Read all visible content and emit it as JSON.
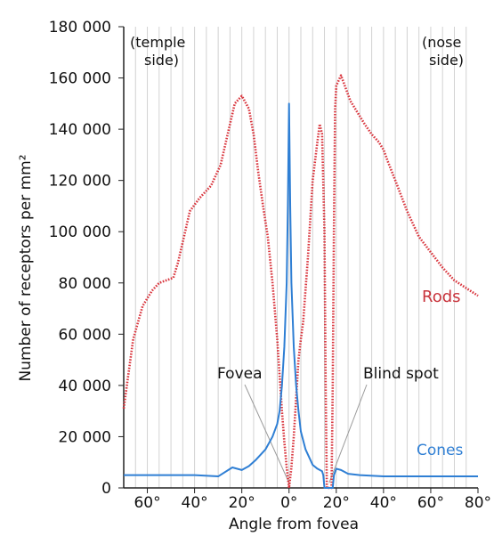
{
  "chart_data": {
    "type": "line",
    "title": "",
    "xlabel": "Angle from fovea",
    "ylabel": "Number of receptors per mm²",
    "xlim": [
      -70,
      80
    ],
    "ylim": [
      0,
      180000
    ],
    "grid": "vertical",
    "y_ticks": [
      {
        "value": 0,
        "label": "0"
      },
      {
        "value": 20000,
        "label": "20 000"
      },
      {
        "value": 40000,
        "label": "40 000"
      },
      {
        "value": 60000,
        "label": "60 000"
      },
      {
        "value": 80000,
        "label": "80 000"
      },
      {
        "value": 100000,
        "label": "100 000"
      },
      {
        "value": 120000,
        "label": "120 000"
      },
      {
        "value": 140000,
        "label": "140 000"
      },
      {
        "value": 160000,
        "label": "160 000"
      },
      {
        "value": 180000,
        "label": "180 000"
      }
    ],
    "x_ticks": [
      {
        "value": -60,
        "label": "60°"
      },
      {
        "value": -40,
        "label": "40°"
      },
      {
        "value": -20,
        "label": "20°"
      },
      {
        "value": 0,
        "label": "0°"
      },
      {
        "value": 20,
        "label": "20°"
      },
      {
        "value": 40,
        "label": "40°"
      },
      {
        "value": 60,
        "label": "60°"
      },
      {
        "value": 80,
        "label": "80°"
      }
    ],
    "series": [
      {
        "name": "Rods",
        "color": "#d9363e",
        "dash": "dotted",
        "x": [
          -70,
          -66,
          -62,
          -58,
          -55,
          -52,
          -49,
          -47,
          -45,
          -42,
          -38,
          -33,
          -29,
          -26,
          -23,
          -20,
          -17,
          -15,
          -13,
          -11,
          -9,
          -7,
          -5,
          -3,
          -2,
          -1,
          0,
          1,
          2,
          3,
          4,
          5,
          6,
          8,
          10,
          12,
          13,
          14,
          15,
          15.5,
          16,
          18,
          18.5,
          19,
          19.5,
          20,
          22,
          24,
          26,
          28,
          30,
          32,
          35,
          38,
          40,
          42,
          45,
          50,
          55,
          60,
          65,
          70,
          75,
          80
        ],
        "y": [
          31000,
          58000,
          71000,
          77000,
          80000,
          81000,
          82000,
          88000,
          96000,
          108000,
          113000,
          118000,
          126000,
          138000,
          150000,
          153000,
          148000,
          138000,
          123000,
          110000,
          98000,
          80000,
          58000,
          30000,
          18000,
          8000,
          0,
          8000,
          20000,
          35000,
          50000,
          58000,
          65000,
          90000,
          120000,
          135000,
          142000,
          138000,
          100000,
          40000,
          0,
          0,
          40000,
          100000,
          148000,
          157000,
          161000,
          156000,
          151000,
          148000,
          145000,
          142000,
          138000,
          135000,
          132000,
          127000,
          120000,
          108000,
          98000,
          92000,
          86000,
          81000,
          78000,
          75000
        ]
      },
      {
        "name": "Cones",
        "color": "#2f7fd4",
        "dash": "solid",
        "x": [
          -70,
          -60,
          -50,
          -40,
          -30,
          -24,
          -20,
          -17,
          -14,
          -10,
          -7,
          -5,
          -4,
          -3,
          -2,
          -1,
          -0.5,
          0,
          0.5,
          1,
          2,
          3,
          4,
          5,
          7,
          10,
          12,
          14,
          14.5,
          15,
          15.5,
          16,
          18,
          18.5,
          19,
          20,
          22,
          25,
          30,
          40,
          50,
          60,
          70,
          80
        ],
        "y": [
          5000,
          5000,
          5000,
          5000,
          4500,
          8000,
          7000,
          8500,
          11000,
          15000,
          20000,
          25000,
          30000,
          40000,
          55000,
          80000,
          110000,
          150000,
          110000,
          80000,
          55000,
          40000,
          30000,
          22000,
          15000,
          9000,
          7500,
          6500,
          5000,
          0,
          0,
          0,
          0,
          0,
          5000,
          7500,
          7000,
          5500,
          5000,
          4500,
          4500,
          4500,
          4500,
          4500
        ]
      }
    ],
    "annotations": {
      "temple_line1": "(temple",
      "temple_line2": "side)",
      "nose_line1": "(nose",
      "nose_line2": "side)",
      "fovea": "Fovea",
      "blind_spot": "Blind spot",
      "rods_label": "Rods",
      "cones_label": "Cones"
    }
  }
}
